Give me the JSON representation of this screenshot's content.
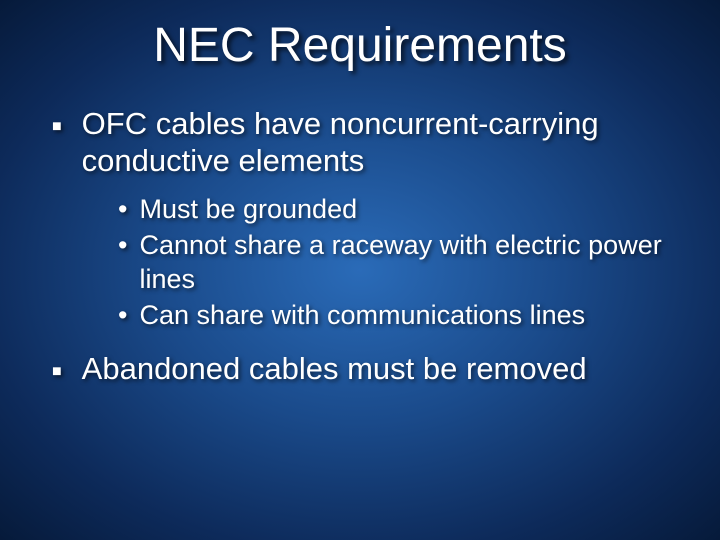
{
  "slide": {
    "title": "NEC Requirements",
    "title_fontsize": 48,
    "title_color": "#ffffff",
    "background_gradient": {
      "type": "radial",
      "stops": [
        "#2a6bb8",
        "#1a4a8a",
        "#0d2a5a",
        "#061a3a"
      ]
    },
    "text_color": "#ffffff",
    "shadow_color": "rgba(0,0,0,0.7)",
    "bullets": [
      {
        "level": 1,
        "marker": "■",
        "text": "OFC cables have noncurrent-carrying conductive elements",
        "fontsize": 31,
        "children": [
          {
            "level": 2,
            "marker": "•",
            "text": "Must be grounded",
            "fontsize": 27
          },
          {
            "level": 2,
            "marker": "•",
            "text": "Cannot share a raceway with electric power lines",
            "fontsize": 27
          },
          {
            "level": 2,
            "marker": "•",
            "text": "Can share with communications lines",
            "fontsize": 27
          }
        ]
      },
      {
        "level": 1,
        "marker": "■",
        "text": "Abandoned cables must be removed",
        "fontsize": 31
      }
    ]
  }
}
